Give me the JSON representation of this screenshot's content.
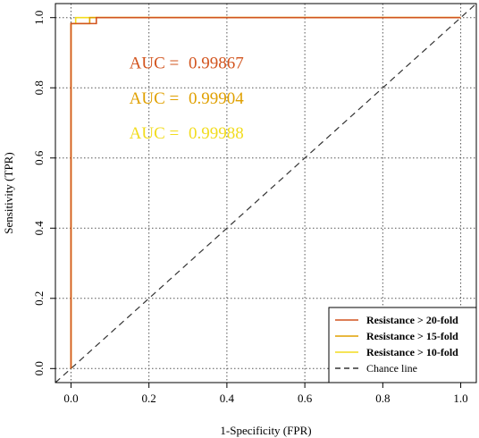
{
  "colors": {
    "frame": "#000000",
    "grid": "#555555",
    "series_20fold": "#d2541e",
    "series_15fold": "#e0a000",
    "series_10fold": "#f2dc1e",
    "chance": "#333333"
  },
  "chart_data": {
    "type": "line",
    "title": "",
    "xlabel": "1-Specificity (FPR)",
    "ylabel": "Sensitivity (TPR)",
    "xlim": [
      -0.04,
      1.04
    ],
    "ylim": [
      -0.04,
      1.04
    ],
    "xticks": [
      0.0,
      0.2,
      0.4,
      0.6,
      0.8,
      1.0
    ],
    "yticks": [
      0.0,
      0.2,
      0.4,
      0.6,
      0.8,
      1.0
    ],
    "xtick_labels": [
      "0.0",
      "0.2",
      "0.4",
      "0.6",
      "0.8",
      "1.0"
    ],
    "ytick_labels": [
      "0.0",
      "0.2",
      "0.4",
      "0.6",
      "0.8",
      "1.0"
    ],
    "grid": true,
    "legend_position": "bottom-right",
    "series": [
      {
        "name": "Resistance > 20-fold",
        "color": "#d2541e",
        "x": [
          0.0,
          0.0,
          0.065,
          0.065,
          1.0
        ],
        "y": [
          0.0,
          0.983,
          0.983,
          1.0,
          1.0
        ]
      },
      {
        "name": "Resistance > 15-fold",
        "color": "#e0a000",
        "x": [
          0.0,
          0.0,
          0.048,
          0.048,
          1.0
        ],
        "y": [
          0.0,
          0.983,
          0.983,
          1.0,
          1.0
        ]
      },
      {
        "name": "Resistance > 10-fold",
        "color": "#f2dc1e",
        "x": [
          0.0,
          0.0,
          0.012,
          0.012,
          1.0
        ],
        "y": [
          0.0,
          0.983,
          0.983,
          1.0,
          1.0
        ]
      }
    ],
    "chance_line": {
      "name": "Chance line",
      "x": [
        -0.04,
        1.04
      ],
      "y": [
        -0.04,
        1.04
      ]
    },
    "annotations": [
      {
        "label": "AUC = ",
        "value": "0.99867",
        "color": "#d2541e",
        "x": 0.2,
        "y": 0.855
      },
      {
        "label": "AUC = ",
        "value": "0.99904",
        "color": "#e0a000",
        "x": 0.2,
        "y": 0.755
      },
      {
        "label": "AUC = ",
        "value": "0.99988",
        "color": "#f2dc1e",
        "x": 0.2,
        "y": 0.655
      }
    ]
  }
}
